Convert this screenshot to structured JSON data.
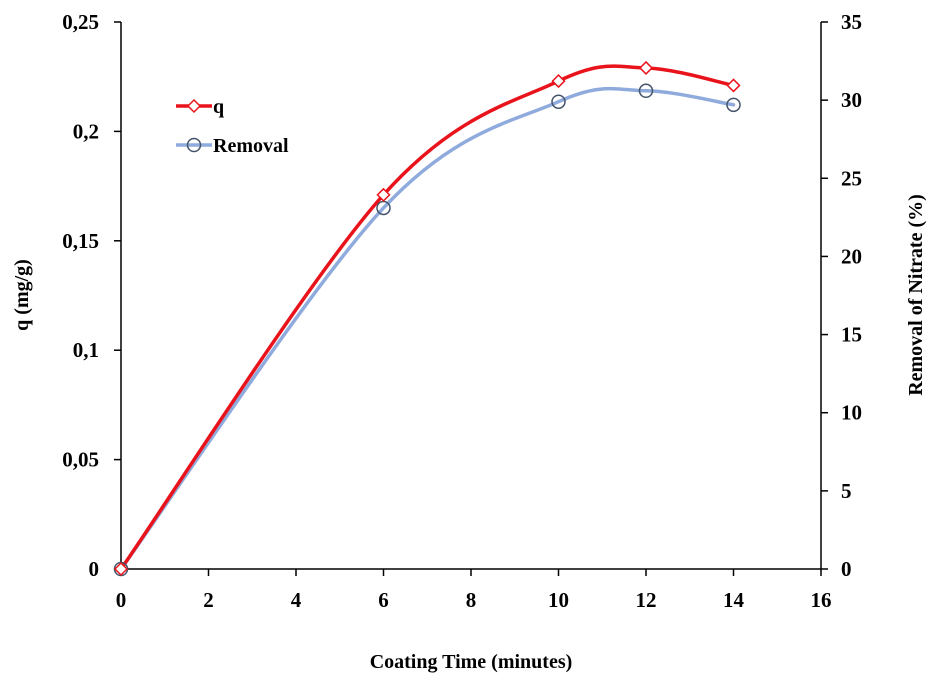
{
  "chart_data": {
    "type": "line",
    "title": "",
    "xlabel": "Coating Time (minutes)",
    "ylabel": "q (mg/g)",
    "y2label": "Removal of Nitrate (%)",
    "xlim": [
      0,
      16
    ],
    "ylim": [
      0,
      0.25
    ],
    "y2lim": [
      0,
      35
    ],
    "x_ticks": [
      0,
      2,
      4,
      6,
      8,
      10,
      12,
      14,
      16
    ],
    "x_tick_labels": [
      "0",
      "2",
      "4",
      "6",
      "8",
      "10",
      "12",
      "14",
      "16"
    ],
    "y_ticks": [
      0,
      0.05,
      0.1,
      0.15,
      0.2,
      0.25
    ],
    "y_tick_labels": [
      "0",
      "0,05",
      "0,1",
      "0,15",
      "0,2",
      "0,25"
    ],
    "y2_ticks": [
      0,
      5,
      10,
      15,
      20,
      25,
      30,
      35
    ],
    "y2_tick_labels": [
      "0",
      "5",
      "10",
      "15",
      "20",
      "25",
      "30",
      "35"
    ],
    "grid": false,
    "legend_position": "top-left",
    "x": [
      0,
      6,
      10,
      12,
      14
    ],
    "series": [
      {
        "name": "q",
        "axis": "left",
        "marker": "diamond",
        "color": "#e8131b",
        "values": [
          0,
          0.171,
          0.223,
          0.229,
          0.221
        ]
      },
      {
        "name": "Removal",
        "axis": "right",
        "marker": "circle",
        "color": "#8faadc",
        "marker_edge": "#44546a",
        "values": [
          0,
          23.1,
          29.9,
          30.6,
          29.7
        ]
      }
    ]
  }
}
